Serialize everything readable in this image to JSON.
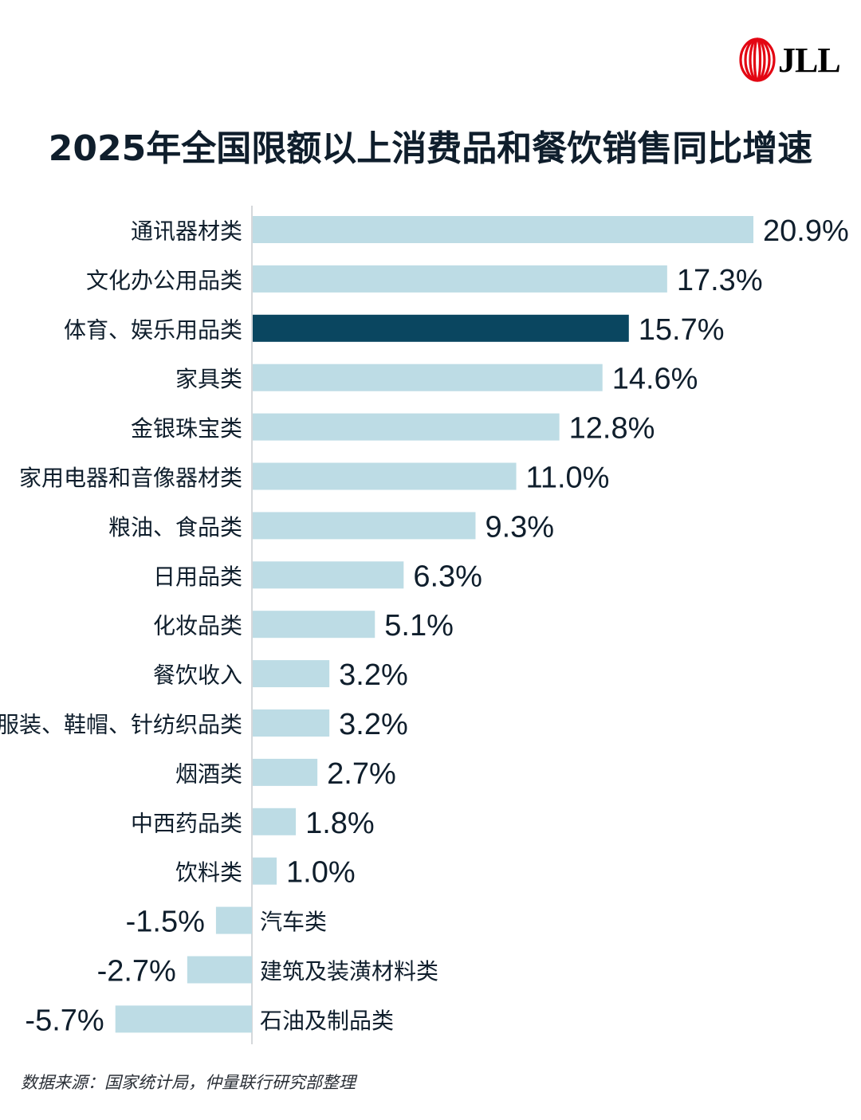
{
  "logo": {
    "text": "JLL",
    "ring_color": "#e30613"
  },
  "colors": {
    "bar": "#bddce5",
    "highlight": "#0a4660",
    "axis": "#d5d8db",
    "text": "#0f1e2c"
  },
  "chart_data": {
    "type": "bar",
    "orientation": "horizontal",
    "title": "2025年全国限额以上消费品和餐饮销售同比增速",
    "xlabel": "",
    "ylabel": "",
    "unit": "%",
    "xlim": [
      -5.7,
      20.9
    ],
    "grid": false,
    "highlight_category": "体育、娱乐用品类",
    "categories": [
      "通讯器材类",
      "文化办公用品类",
      "体育、娱乐用品类",
      "家具类",
      "金银珠宝类",
      "家用电器和音像器材类",
      "粮油、食品类",
      "日用品类",
      "化妆品类",
      "餐饮收入",
      "服装、鞋帽、针纺织品类",
      "烟酒类",
      "中西药品类",
      "饮料类",
      "汽车类",
      "建筑及装潢材料类",
      "石油及制品类"
    ],
    "values": [
      20.9,
      17.3,
      15.7,
      14.6,
      12.8,
      11.0,
      9.3,
      6.3,
      5.1,
      3.2,
      3.2,
      2.7,
      1.8,
      1.0,
      -1.5,
      -2.7,
      -5.7
    ],
    "labels": [
      "20.9%",
      "17.3%",
      "15.7%",
      "14.6%",
      "12.8%",
      "11.0%",
      "9.3%",
      "6.3%",
      "5.1%",
      "3.2%",
      "3.2%",
      "2.7%",
      "1.8%",
      "1.0%",
      "-1.5%",
      "-2.7%",
      "-5.7%"
    ]
  },
  "source": "数据来源：国家统计局，仲量联行研究部整理"
}
